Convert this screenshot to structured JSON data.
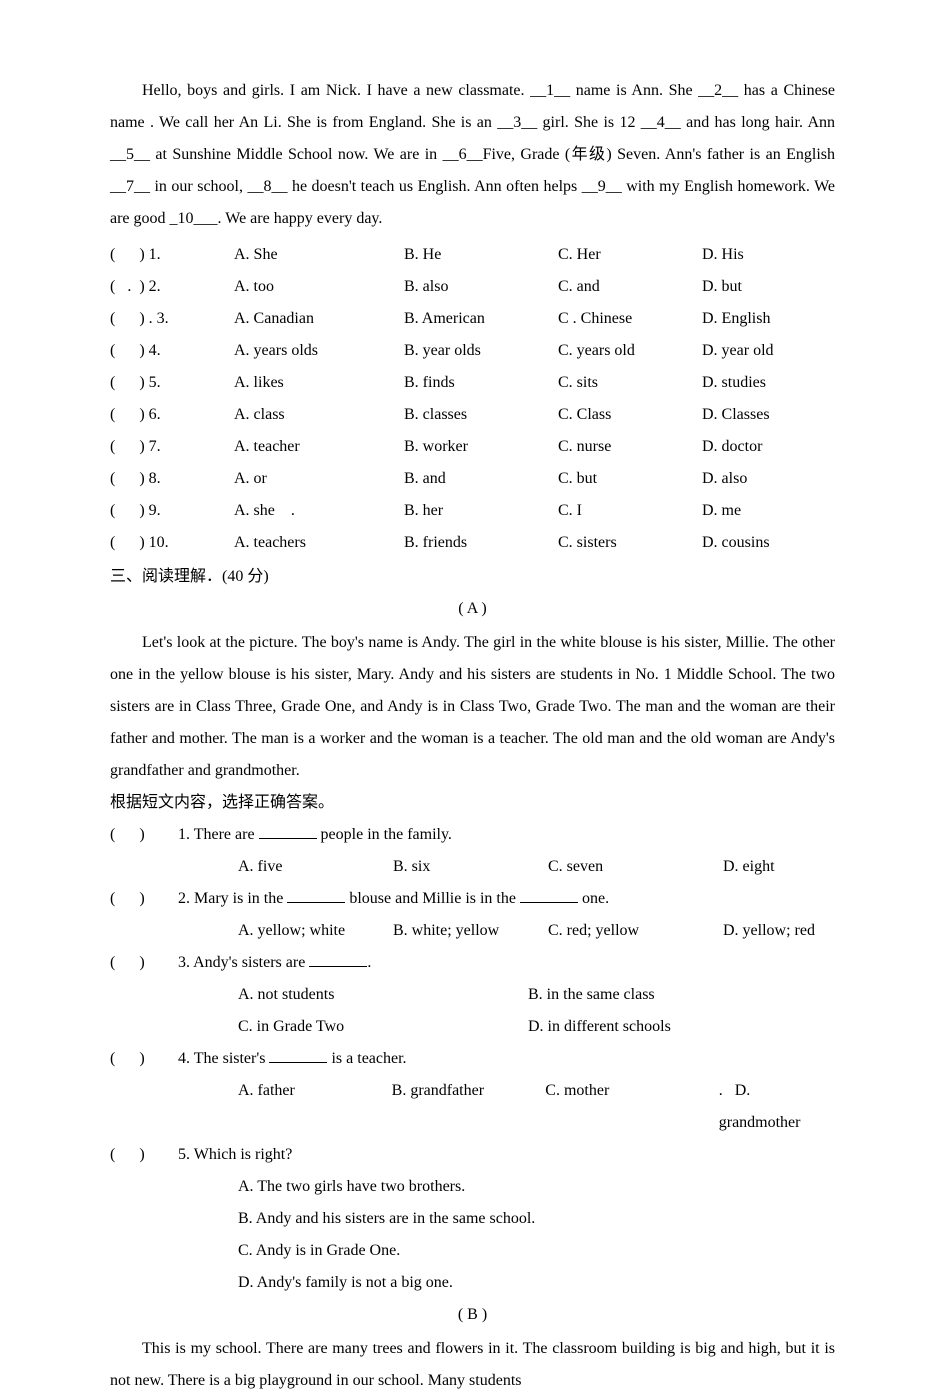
{
  "cloze": {
    "passage": "Hello, boys and girls. I am Nick. I have a new classmate. __1__ name is Ann. She __2__ has a Chinese name . We call her An Li. She is from England. She is an __3__ girl. She is 12 __4__ and has long hair. Ann __5__ at Sunshine Middle School now. We are in __6__Five, Grade (年级) Seven. Ann's father is an English __7__ in our school, __8__ he doesn't teach us English. Ann often helps __9__ with my English homework. We are good _10___. We are happy every day.",
    "questions": [
      {
        "n": "1",
        "a": "A. She",
        "b": "B. He",
        "c": "C. Her",
        "d": "D. His"
      },
      {
        "n": "2",
        "a": "A. too",
        "b": "B. also",
        "c": "C. and",
        "d": "D. but",
        "dot": true
      },
      {
        "n": "3",
        "a": "A. Canadian",
        "b": "B. American",
        "c": "C . Chinese",
        "d": "D. English",
        "period": true
      },
      {
        "n": "4",
        "a": "A. years olds",
        "b": "B. year olds",
        "c": "C. years old",
        "d": "D. year old"
      },
      {
        "n": "5",
        "a": "A. likes",
        "b": "B. finds",
        "c": "C. sits",
        "d": "D. studies"
      },
      {
        "n": "6",
        "a": "A. class",
        "b": "B. classes",
        "c": "C. Class",
        "d": "D. Classes"
      },
      {
        "n": "7",
        "a": "A. teacher",
        "b": "B. worker",
        "c": "C. nurse",
        "d": "D. doctor"
      },
      {
        "n": "8",
        "a": "A. or",
        "b": "B. and",
        "c": "C. but",
        "d": "D. also"
      },
      {
        "n": "9",
        "a": "A. she",
        "b": "B. her",
        "c": "C. I",
        "d": "D. me",
        "dot2": true
      },
      {
        "n": "10",
        "a": "A. teachers",
        "b": "B. friends",
        "c": "C. sisters",
        "d": "D. cousins"
      }
    ]
  },
  "section3_title": "三、阅读理解．(40 分)",
  "partA": {
    "label": "( A )",
    "passage": "Let's look at the picture. The boy's name is Andy. The girl in the white blouse is his sister, Millie. The other one in the yellow blouse is his sister, Mary. Andy and his sisters are students in No. 1 Middle School. The two sisters are in Class Three, Grade One, and Andy is in Class Two, Grade Two. The man and the woman are their father and mother. The man is a worker and the woman is a teacher. The old man and the old woman are Andy's grandfather and grandmother.",
    "instruction": "根据短文内容，选择正确答案。",
    "q1": {
      "stem_pre": "1. There are ",
      "stem_post": " people in the family.",
      "a": "A. five",
      "b": "B. six",
      "c": "C. seven",
      "d": "D. eight"
    },
    "q2": {
      "stem_pre": "2. Mary is in the ",
      "stem_mid": " blouse and Millie is in the ",
      "stem_post": " one.",
      "a": "A. yellow; white",
      "b": "B. white; yellow",
      "c": "C. red; yellow",
      "d": "D. yellow; red"
    },
    "q3": {
      "stem": "3. Andy's sisters are ",
      "stem_post": ".",
      "a": "A. not students",
      "b": "B. in the same class",
      "c": "C. in Grade Two",
      "d": "D. in different schools"
    },
    "q4": {
      "stem": "4. The sister's ",
      "stem_post": " is a teacher.",
      "a": "A. father",
      "b": "B. grandfather",
      "c": "C. mother",
      "d": "D. grandmother"
    },
    "q5": {
      "stem": "5. Which is right?",
      "a": "A.  The two girls have two brothers.",
      "b": "B.  Andy and his sisters are in the same school.",
      "c": "C.  Andy is in Grade One.",
      "d": "D.  Andy's family is not a big one."
    }
  },
  "partB": {
    "label": "( B )",
    "passage": "This is my school. There are many trees and flowers in it. The classroom building is big and high, but it is not new. There is a big playground in our school. Many students"
  }
}
